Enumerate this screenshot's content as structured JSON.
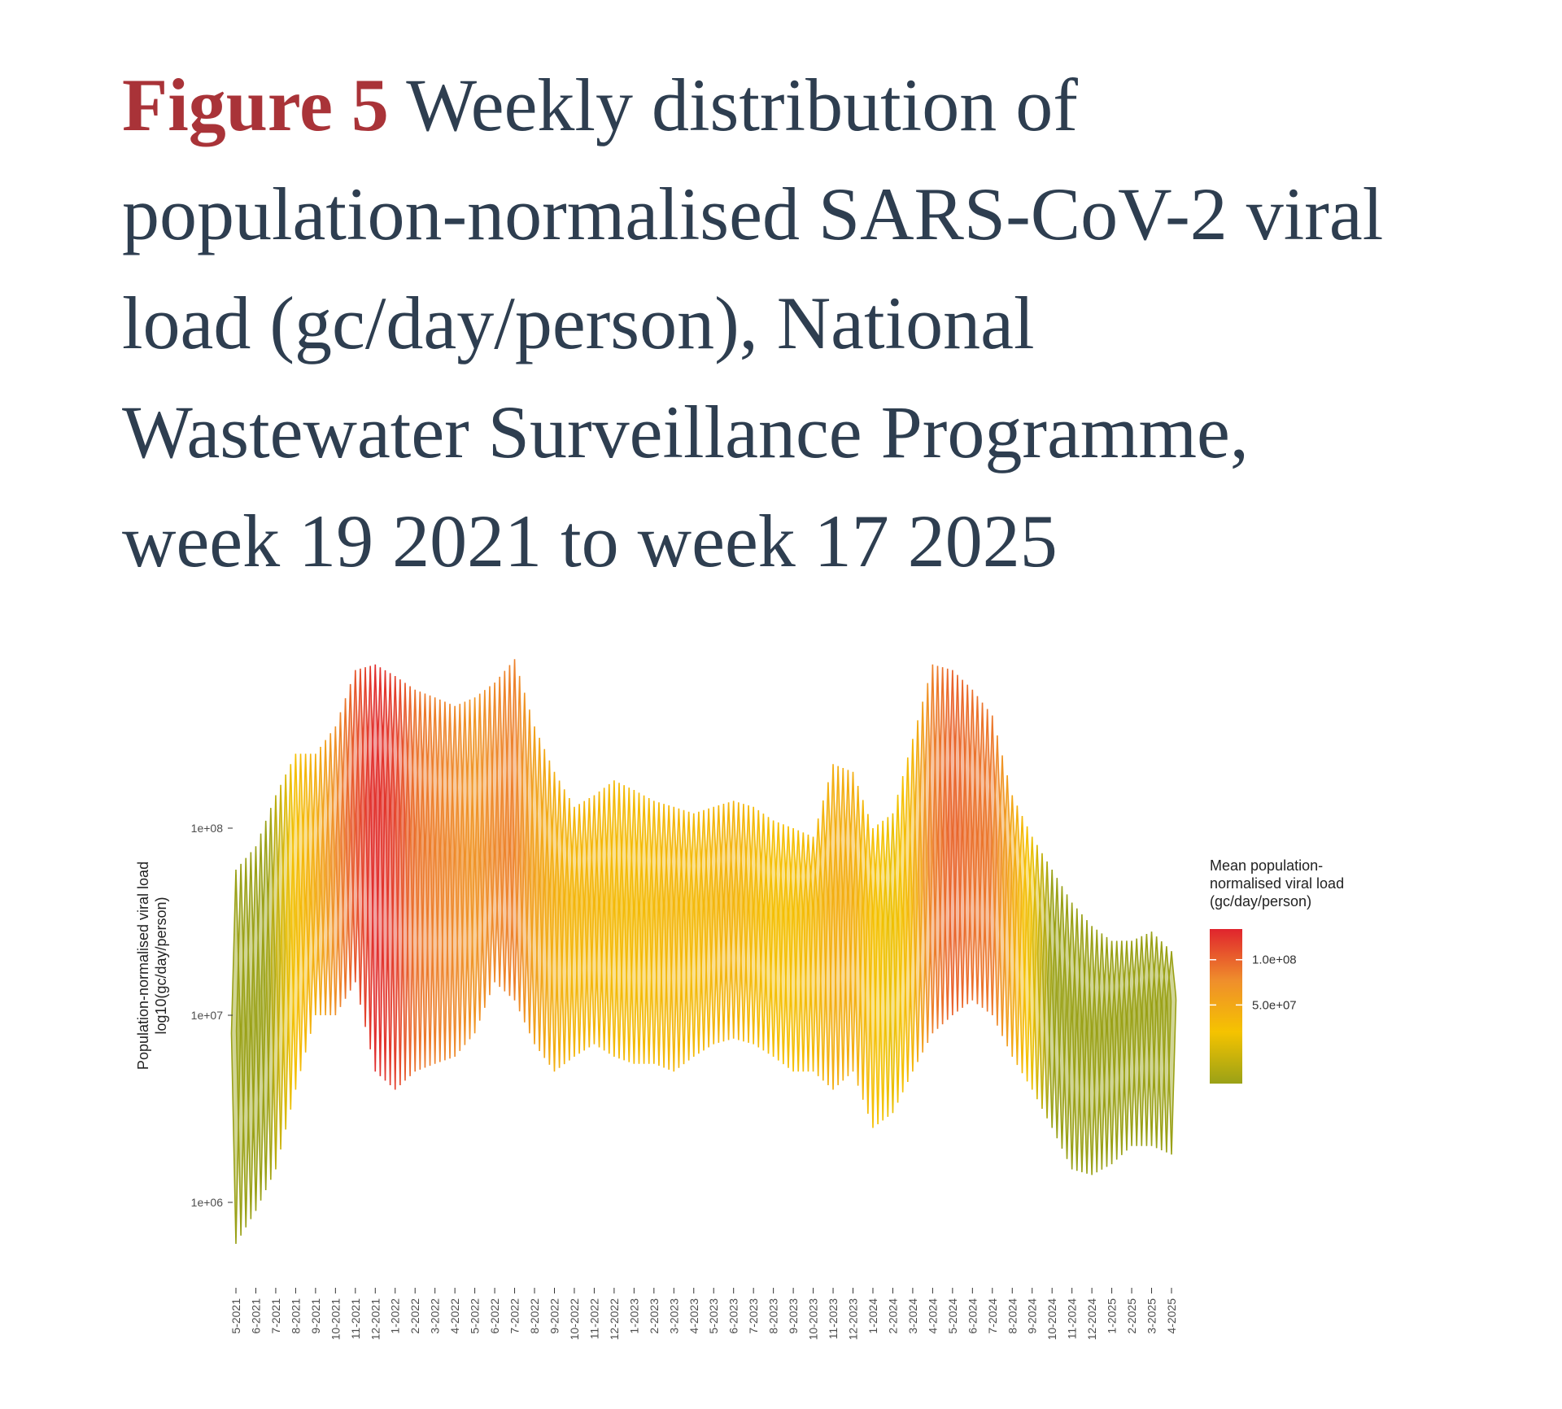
{
  "figure": {
    "label": "Figure 5",
    "caption": "Weekly distribution of population-normalised SARS-CoV-2 viral load (gc/day/person), National Wastewater Surveillance Programme, week 19 2021 to week 17 2025"
  },
  "chart_data": {
    "type": "violin",
    "ylabel": "Population-normalised viral load log10(gc/day/person)",
    "yscale": "log10",
    "yticks": [
      {
        "value": 1000000,
        "label": "1e+06"
      },
      {
        "value": 10000000,
        "label": "1e+07"
      },
      {
        "value": 100000000,
        "label": "1e+08"
      }
    ],
    "ylim": [
      400000,
      800000000
    ],
    "xticks": [
      "5-2021",
      "6-2021",
      "7-2021",
      "8-2021",
      "9-2021",
      "10-2021",
      "11-2021",
      "12-2021",
      "1-2022",
      "2-2022",
      "3-2022",
      "4-2022",
      "5-2022",
      "6-2022",
      "7-2022",
      "8-2022",
      "9-2022",
      "10-2022",
      "11-2022",
      "12-2022",
      "1-2023",
      "2-2023",
      "3-2023",
      "4-2023",
      "5-2023",
      "6-2023",
      "7-2023",
      "8-2023",
      "9-2023",
      "10-2023",
      "11-2023",
      "12-2023",
      "1-2024",
      "2-2024",
      "3-2024",
      "4-2024",
      "5-2024",
      "6-2024",
      "7-2024",
      "8-2024",
      "9-2024",
      "10-2024",
      "11-2024",
      "12-2024",
      "1-2025",
      "2-2025",
      "3-2025",
      "4-2025"
    ],
    "color_legend": {
      "title": "Mean population- normalised viral load (gc/day/person)",
      "labels": [
        {
          "value": 100000000,
          "label": "1.0e+08"
        },
        {
          "value": 50000000,
          "label": "5.0e+07"
        }
      ],
      "colors": [
        "#9aa117",
        "#f5c300",
        "#ef8e2c",
        "#e0242d"
      ]
    },
    "monthly_profile": [
      {
        "month": "5-2021",
        "mean": 8000000,
        "low": 600000,
        "high": 60000000
      },
      {
        "month": "6-2021",
        "mean": 9000000,
        "low": 900000,
        "high": 80000000
      },
      {
        "month": "7-2021",
        "mean": 20000000,
        "low": 1500000,
        "high": 150000000
      },
      {
        "month": "8-2021",
        "mean": 35000000,
        "low": 4000000,
        "high": 250000000
      },
      {
        "month": "9-2021",
        "mean": 45000000,
        "low": 10000000,
        "high": 250000000
      },
      {
        "month": "10-2021",
        "mean": 70000000,
        "low": 10000000,
        "high": 350000000
      },
      {
        "month": "11-2021",
        "mean": 110000000,
        "low": 15000000,
        "high": 700000000
      },
      {
        "month": "12-2021",
        "mean": 150000000,
        "low": 5000000,
        "high": 750000000
      },
      {
        "month": "1-2022",
        "mean": 130000000,
        "low": 4000000,
        "high": 650000000
      },
      {
        "month": "2-2022",
        "mean": 90000000,
        "low": 5000000,
        "high": 550000000
      },
      {
        "month": "3-2022",
        "mean": 80000000,
        "low": 5500000,
        "high": 500000000
      },
      {
        "month": "4-2022",
        "mean": 75000000,
        "low": 6000000,
        "high": 450000000
      },
      {
        "month": "5-2022",
        "mean": 65000000,
        "low": 8000000,
        "high": 500000000
      },
      {
        "month": "6-2022",
        "mean": 75000000,
        "low": 15000000,
        "high": 600000000
      },
      {
        "month": "7-2022",
        "mean": 80000000,
        "low": 12000000,
        "high": 800000000
      },
      {
        "month": "8-2022",
        "mean": 55000000,
        "low": 7000000,
        "high": 350000000
      },
      {
        "month": "9-2022",
        "mean": 45000000,
        "low": 5000000,
        "high": 200000000
      },
      {
        "month": "10-2022",
        "mean": 40000000,
        "low": 6000000,
        "high": 130000000
      },
      {
        "month": "11-2022",
        "mean": 40000000,
        "low": 7000000,
        "high": 150000000
      },
      {
        "month": "12-2022",
        "mean": 38000000,
        "low": 6000000,
        "high": 180000000
      },
      {
        "month": "1-2023",
        "mean": 37000000,
        "low": 5500000,
        "high": 160000000
      },
      {
        "month": "2-2023",
        "mean": 38000000,
        "low": 5500000,
        "high": 140000000
      },
      {
        "month": "3-2023",
        "mean": 40000000,
        "low": 5000000,
        "high": 130000000
      },
      {
        "month": "4-2023",
        "mean": 38000000,
        "low": 6000000,
        "high": 120000000
      },
      {
        "month": "5-2023",
        "mean": 40000000,
        "low": 7000000,
        "high": 130000000
      },
      {
        "month": "6-2023",
        "mean": 42000000,
        "low": 7500000,
        "high": 140000000
      },
      {
        "month": "7-2023",
        "mean": 38000000,
        "low": 7000000,
        "high": 130000000
      },
      {
        "month": "8-2023",
        "mean": 35000000,
        "low": 6000000,
        "high": 110000000
      },
      {
        "month": "9-2023",
        "mean": 35000000,
        "low": 5000000,
        "high": 100000000
      },
      {
        "month": "10-2023",
        "mean": 38000000,
        "low": 5000000,
        "high": 90000000
      },
      {
        "month": "11-2023",
        "mean": 45000000,
        "low": 4000000,
        "high": 220000000
      },
      {
        "month": "12-2023",
        "mean": 45000000,
        "low": 5000000,
        "high": 200000000
      },
      {
        "month": "1-2024",
        "mean": 35000000,
        "low": 2500000,
        "high": 100000000
      },
      {
        "month": "2-2024",
        "mean": 30000000,
        "low": 3000000,
        "high": 120000000
      },
      {
        "month": "3-2024",
        "mean": 40000000,
        "low": 5000000,
        "high": 300000000
      },
      {
        "month": "4-2024",
        "mean": 80000000,
        "low": 8000000,
        "high": 750000000
      },
      {
        "month": "5-2024",
        "mean": 100000000,
        "low": 10000000,
        "high": 700000000
      },
      {
        "month": "6-2024",
        "mean": 90000000,
        "low": 12000000,
        "high": 550000000
      },
      {
        "month": "7-2024",
        "mean": 85000000,
        "low": 10000000,
        "high": 400000000
      },
      {
        "month": "8-2024",
        "mean": 50000000,
        "low": 6000000,
        "high": 150000000
      },
      {
        "month": "9-2024",
        "mean": 30000000,
        "low": 4000000,
        "high": 90000000
      },
      {
        "month": "10-2024",
        "mean": 15000000,
        "low": 2500000,
        "high": 60000000
      },
      {
        "month": "11-2024",
        "mean": 10000000,
        "low": 1500000,
        "high": 40000000
      },
      {
        "month": "12-2024",
        "mean": 8000000,
        "low": 1400000,
        "high": 30000000
      },
      {
        "month": "1-2025",
        "mean": 9000000,
        "low": 1600000,
        "high": 25000000
      },
      {
        "month": "2-2025",
        "mean": 10000000,
        "low": 2000000,
        "high": 25000000
      },
      {
        "month": "3-2025",
        "mean": 11000000,
        "low": 2000000,
        "high": 28000000
      },
      {
        "month": "4-2025",
        "mean": 12000000,
        "low": 1800000,
        "high": 22000000
      }
    ]
  }
}
